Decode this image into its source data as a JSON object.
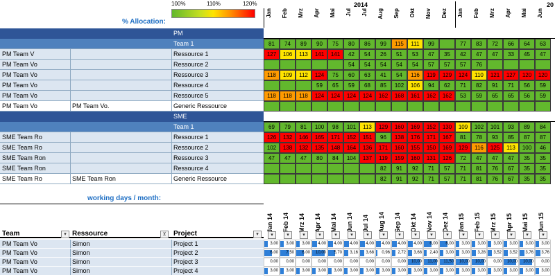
{
  "legend": {
    "min_label": "100%",
    "mid_label": "110%",
    "max_label": "120%"
  },
  "allocation_title": "% Allocation:",
  "working_days_title": "working days / month:",
  "years": [
    "2014",
    "20"
  ],
  "months": [
    "Jan",
    "Feb",
    "Mrz",
    "Apr",
    "Mai",
    "Jul",
    "Jul",
    "Aug",
    "Sep",
    "Okt",
    "Nov",
    "Dez",
    "Jan",
    "Feb",
    "Mrz",
    "Apr",
    "Mai",
    "Jun"
  ],
  "colors": {
    "green": "#62b82d",
    "yellow": "#ffe400",
    "orange": "#ff9a00",
    "red": "#ff0000",
    "band": "#2f5597",
    "team": "#4f81bd",
    "light": "#dce6f1",
    "bar": "#2e7fd8"
  },
  "allocation_rows": [
    {
      "type": "band",
      "label": "PM"
    },
    {
      "type": "team",
      "label": "Team 1",
      "values": [
        "81",
        "74",
        "89",
        "90",
        "75",
        "80",
        "86",
        "99",
        "115",
        "111",
        "99",
        "",
        "77",
        "83",
        "72",
        "66",
        "64",
        "63"
      ]
    },
    {
      "type": "res",
      "c1": "PM Team V",
      "c2": "",
      "c3": "Ressource 1",
      "values": [
        "127",
        "106",
        "113",
        "141",
        "141",
        "42",
        "54",
        "26",
        "51",
        "53",
        "47",
        "35",
        "42",
        "47",
        "47",
        "33",
        "45",
        "47"
      ]
    },
    {
      "type": "res",
      "c1": "PM Team Vo",
      "c2": "",
      "c3": "Ressource 2",
      "values": [
        "",
        "",
        "",
        "",
        "",
        "54",
        "54",
        "54",
        "54",
        "54",
        "57",
        "57",
        "57",
        "76",
        "",
        "",
        "",
        ""
      ]
    },
    {
      "type": "res",
      "c1": "PM Team Vo",
      "c2": "",
      "c3": "Ressource 3",
      "values": [
        "118",
        "109",
        "112",
        "124",
        "75",
        "60",
        "63",
        "41",
        "54",
        "116",
        "119",
        "129",
        "124",
        "110",
        "121",
        "127",
        "120",
        "120"
      ]
    },
    {
      "type": "res",
      "c1": "PM Team Vo",
      "c2": "",
      "c3": "Ressource 4",
      "values": [
        "",
        "",
        "",
        "59",
        "65",
        "59",
        "68",
        "85",
        "102",
        "106",
        "94",
        "62",
        "71",
        "82",
        "91",
        "71",
        "56",
        "59"
      ]
    },
    {
      "type": "res",
      "c1": "PM Team Vo",
      "c2": "",
      "c3": "Ressource 5",
      "values": [
        "118",
        "118",
        "118",
        "124",
        "124",
        "124",
        "124",
        "162",
        "168",
        "161",
        "162",
        "162",
        "53",
        "59",
        "65",
        "65",
        "56",
        "59"
      ]
    },
    {
      "type": "res",
      "c1": "PM Team Vo",
      "c2": "PM Team Vo.",
      "c3": "Generic Ressource",
      "values": [
        "",
        "",
        "",
        "",
        "",
        "",
        "",
        "",
        "",
        "",
        "",
        "",
        "",
        "",
        "",
        "",
        "",
        ""
      ]
    },
    {
      "type": "band",
      "label": "SME"
    },
    {
      "type": "team",
      "label": "Team 1",
      "values": [
        "69",
        "79",
        "81",
        "100",
        "98",
        "101",
        "113",
        "129",
        "160",
        "169",
        "152",
        "130",
        "109",
        "102",
        "101",
        "93",
        "89",
        "84"
      ]
    },
    {
      "type": "res",
      "c1": "SME Team Ro",
      "c2": "",
      "c3": "Ressource 1",
      "values": [
        "126",
        "132",
        "146",
        "165",
        "171",
        "152",
        "151",
        "96",
        "138",
        "176",
        "171",
        "167",
        "81",
        "78",
        "93",
        "85",
        "87",
        "87"
      ]
    },
    {
      "type": "res",
      "c1": "SME Team Ro",
      "c2": "",
      "c3": "Ressource 2",
      "values": [
        "102",
        "138",
        "132",
        "135",
        "148",
        "164",
        "136",
        "171",
        "160",
        "155",
        "150",
        "169",
        "129",
        "116",
        "125",
        "113",
        "100",
        "46"
      ]
    },
    {
      "type": "res",
      "c1": "SME Team Ron",
      "c2": "",
      "c3": "Ressource 3",
      "values": [
        "47",
        "47",
        "47",
        "80",
        "84",
        "104",
        "137",
        "119",
        "159",
        "160",
        "131",
        "126",
        "72",
        "47",
        "47",
        "47",
        "35",
        "35"
      ]
    },
    {
      "type": "res",
      "c1": "SME Team Ron",
      "c2": "",
      "c3": "Ressource 4",
      "values": [
        "",
        "",
        "",
        "",
        "",
        "",
        "",
        "82",
        "91",
        "92",
        "71",
        "57",
        "71",
        "81",
        "76",
        "67",
        "35",
        "35"
      ]
    },
    {
      "type": "res",
      "c1": "SME Team Ro",
      "c2": "SME Team Ron",
      "c3": "Generic Ressource",
      "values": [
        "",
        "",
        "",
        "",
        "",
        "",
        "",
        "82",
        "91",
        "92",
        "71",
        "57",
        "71",
        "81",
        "76",
        "67",
        "35",
        "35"
      ]
    }
  ],
  "bottom": {
    "headers": {
      "team": "Team",
      "resource": "Ressource",
      "project": "Project"
    },
    "months": [
      "Jan 14",
      "Feb 14",
      "Mrz 14",
      "Apr 14",
      "Mai 14",
      "Jun 14",
      "Jul 14",
      "Aug 14",
      "Sep 14",
      "Okt 14",
      "Nov 14",
      "Dez 14",
      "Jan 15",
      "Feb 15",
      "Mrz 15",
      "Apr 15",
      "Mai 15",
      "Jun 15"
    ],
    "rows": [
      {
        "team": "PM Team Vo",
        "resource": "Simon",
        "project": "Project 1",
        "values": [
          "3,00",
          "3,00",
          "3,00",
          "4,00",
          "4,00",
          "4,00",
          "4,00",
          "4,00",
          "4,00",
          "4,00",
          "6,00",
          "6,00",
          "3,00",
          "3,00",
          "3,00",
          "3,00",
          "3,00",
          "3,00"
        ]
      },
      {
        "team": "PM Team Vo",
        "resource": "Simon",
        "project": "Project 2",
        "values": [
          "6,00",
          "7,50",
          "6,00",
          "10,00",
          "5,70",
          "3,16",
          "3,68",
          "0,96",
          "2,72",
          "3,68",
          "2,40",
          "3,00",
          "3,00",
          "3,28",
          "3,52",
          "3,52",
          "3,76",
          "3,76"
        ]
      },
      {
        "team": "PM Team Vo",
        "resource": "Simon",
        "project": "Project 3",
        "values": [
          "0,00",
          "0,00",
          "0,00",
          "0,00",
          "0,00",
          "0,00",
          "0,00",
          "0,00",
          "0,00",
          "10,00",
          "11,00",
          "11,50",
          "10,00",
          "10,00",
          "0,00",
          "10,00",
          "10,00",
          "0,00"
        ]
      },
      {
        "team": "PM Team Vo",
        "resource": "Simon",
        "project": "Project 4",
        "values": [
          "3,00",
          "3,00",
          "3,00",
          "3,00",
          "3,00",
          "3,00",
          "3,00",
          "3,00",
          "3,00",
          "3,00",
          "3,00",
          "3,00",
          "3,00",
          "3,00",
          "3,00",
          "3,00",
          "3,00",
          "3,00"
        ]
      }
    ]
  }
}
